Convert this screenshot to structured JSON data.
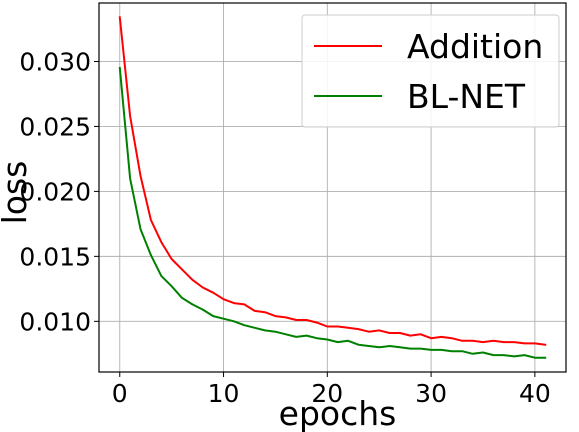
{
  "chart_data": {
    "type": "line",
    "xlabel": "epochs",
    "ylabel": "loss",
    "xlim": [
      -2,
      43
    ],
    "ylim": [
      0.0061,
      0.0345
    ],
    "x_ticks": [
      0,
      10,
      20,
      30,
      40
    ],
    "x_tick_labels": [
      "0",
      "10",
      "20",
      "30",
      "40"
    ],
    "y_ticks": [
      0.01,
      0.015,
      0.02,
      0.025,
      0.03
    ],
    "y_tick_labels": [
      "0.010",
      "0.015",
      "0.020",
      "0.025",
      "0.030"
    ],
    "grid": true,
    "legend_position": "top-right",
    "x": [
      0,
      1,
      2,
      3,
      4,
      5,
      6,
      7,
      8,
      9,
      10,
      11,
      12,
      13,
      14,
      15,
      16,
      17,
      18,
      19,
      20,
      21,
      22,
      23,
      24,
      25,
      26,
      27,
      28,
      29,
      30,
      31,
      32,
      33,
      34,
      35,
      36,
      37,
      38,
      39,
      40,
      41
    ],
    "series": [
      {
        "name": "Addition",
        "color": "#ff0000",
        "values": [
          0.0334,
          0.0258,
          0.0212,
          0.0178,
          0.0161,
          0.0148,
          0.014,
          0.0132,
          0.0126,
          0.0122,
          0.0117,
          0.0114,
          0.0113,
          0.0108,
          0.0107,
          0.0104,
          0.0103,
          0.0101,
          0.0101,
          0.0099,
          0.0096,
          0.0096,
          0.0095,
          0.0094,
          0.0092,
          0.0093,
          0.0091,
          0.0091,
          0.0089,
          0.009,
          0.0087,
          0.0088,
          0.0087,
          0.0085,
          0.0085,
          0.0084,
          0.0085,
          0.0084,
          0.0084,
          0.0083,
          0.0083,
          0.0082
        ]
      },
      {
        "name": "BL-NET",
        "color": "#008000",
        "values": [
          0.0295,
          0.021,
          0.0171,
          0.0151,
          0.0135,
          0.0127,
          0.0118,
          0.0113,
          0.0109,
          0.0104,
          0.0102,
          0.01,
          0.0097,
          0.0095,
          0.0093,
          0.0092,
          0.009,
          0.0088,
          0.0089,
          0.0087,
          0.0086,
          0.0084,
          0.0085,
          0.0082,
          0.0081,
          0.008,
          0.0081,
          0.008,
          0.0079,
          0.0079,
          0.0078,
          0.0078,
          0.0077,
          0.0077,
          0.0075,
          0.0076,
          0.0074,
          0.0074,
          0.0073,
          0.0074,
          0.0072,
          0.0072
        ]
      }
    ]
  }
}
